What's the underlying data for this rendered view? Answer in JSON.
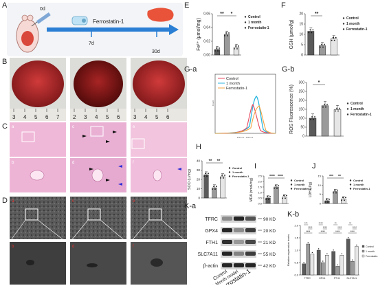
{
  "panels": {
    "A": {
      "label": "A",
      "day0": "0d",
      "day7": "7d",
      "day30": "30d",
      "drug": "Ferrostatin-1",
      "colors": {
        "arrow": "#2a7fd4",
        "liver": "#e8533a",
        "box": "#f2f4f7"
      }
    },
    "B": {
      "label": "B",
      "ruler_ticks": [
        "3",
        "4",
        "5",
        "6",
        "7",
        "2",
        "3",
        "4",
        "5",
        "6",
        "3",
        "4",
        "5",
        "6"
      ]
    },
    "C": {
      "label": "C",
      "sub": [
        "a",
        "b",
        "c",
        "d",
        "e",
        "f"
      ]
    },
    "D": {
      "label": "D",
      "sub": [
        "a",
        "b",
        "c",
        "d",
        "e",
        "f"
      ]
    },
    "E": {
      "label": "E"
    },
    "F": {
      "label": "F"
    },
    "Ga": {
      "label": "G-a",
      "legend": [
        "Control",
        "1 month",
        "Ferrostatin-1"
      ],
      "xlabel": "FITC-H :: FITC-H",
      "ylabel": "Count"
    },
    "Gb": {
      "label": "G-b"
    },
    "H": {
      "label": "H"
    },
    "I": {
      "label": "I"
    },
    "J": {
      "label": "J"
    },
    "Ka": {
      "label": "K-a",
      "proteins": [
        "TFRC",
        "GPX4",
        "FTH1",
        "SLC7A11",
        "β-actin"
      ],
      "kd": [
        "90 KD",
        "20 KD",
        "21 KD",
        "55 KD",
        "42 KD"
      ],
      "lanes": [
        "Control",
        "1 Month model",
        "Ferrostatin-1"
      ]
    },
    "Kb": {
      "label": "K-b"
    }
  },
  "chart_data": [
    {
      "type": "bar",
      "id": "E",
      "ylabel": "Fe²⁺ (μmol/mg)",
      "categories": [
        "Control",
        "1 month",
        "Ferrostatin-1"
      ],
      "values": [
        0.008,
        0.03,
        0.011
      ],
      "ylim": [
        0,
        0.06
      ],
      "yticks": [
        "0.00",
        "0.02",
        "0.04",
        "0.06"
      ],
      "sig": [
        "**",
        "*"
      ],
      "legend": [
        "Control",
        "1 month",
        "Ferrostatin-1"
      ]
    },
    {
      "type": "bar",
      "id": "F",
      "ylabel": "GSH (μmol/g)",
      "categories": [
        "Control",
        "1 month",
        "Ferrostatin-1"
      ],
      "values": [
        11.5,
        4.5,
        7.8
      ],
      "ylim": [
        0,
        20
      ],
      "yticks": [
        "0",
        "5",
        "10",
        "15",
        "20"
      ],
      "sig": [
        "**"
      ],
      "legend": [
        "Control",
        "1 month",
        "Ferrostatin-1"
      ]
    },
    {
      "type": "line",
      "id": "G-a",
      "series": [
        {
          "name": "Control",
          "color": "#e84a5f"
        },
        {
          "name": "1 month",
          "color": "#29b6e0"
        },
        {
          "name": "Ferrostatin-1",
          "color": "#f4a340"
        }
      ]
    },
    {
      "type": "bar",
      "id": "G-b",
      "ylabel": "ROS Fluorescence (%)",
      "categories": [
        "Control",
        "1 month",
        "Ferrostatin-1"
      ],
      "values": [
        100,
        170,
        148
      ],
      "ylim": [
        0,
        300
      ],
      "yticks": [
        "0",
        "50",
        "100",
        "150",
        "200",
        "250",
        "300"
      ],
      "sig": [
        "*"
      ],
      "legend": [
        "Control",
        "1 month",
        "Ferrostatin-1"
      ]
    },
    {
      "type": "bar",
      "id": "H",
      "ylabel": "SOD (U/mg)",
      "categories": [
        "Control",
        "1 month",
        "Ferrostatin-1"
      ],
      "values": [
        25,
        11,
        23
      ],
      "ylim": [
        0,
        40
      ],
      "yticks": [
        "0",
        "10",
        "20",
        "30",
        "40"
      ],
      "sig": [
        "**",
        "**"
      ],
      "legend": [
        "Control",
        "1 month",
        "Ferrostatin-1"
      ]
    },
    {
      "type": "bar",
      "id": "I",
      "ylabel": "MDA (nmol/mg)",
      "categories": [
        "Control",
        "1 month",
        "Ferrostatin-1"
      ],
      "values": [
        0.5,
        1.5,
        0.6
      ],
      "ylim": [
        0,
        2.5
      ],
      "yticks": [
        "0.0",
        "0.5",
        "1.0",
        "1.5",
        "2.0",
        "2.5"
      ],
      "sig": [
        "****",
        "****"
      ],
      "legend": [
        "Control",
        "1 month",
        "Ferrostatin-1"
      ]
    },
    {
      "type": "bar",
      "id": "J",
      "ylabel": "LDH (U/g)",
      "categories": [
        "Control",
        "1 month",
        "Ferrostatin-1"
      ],
      "values": [
        1.5,
        6.5,
        2.5
      ],
      "ylim": [
        0,
        15
      ],
      "yticks": [
        "0",
        "5",
        "10",
        "15"
      ],
      "sig": [
        "***",
        "**"
      ],
      "legend": [
        "Control",
        "1 month",
        "Ferrostatin-1"
      ]
    },
    {
      "type": "bar",
      "id": "K-b",
      "ylabel": "Relative expression levels",
      "categories": [
        "TFRC",
        "GPX4",
        "FTH1",
        "SLC7A11"
      ],
      "series": [
        {
          "name": "Control",
          "values": [
            0.45,
            1.0,
            0.95,
            1.45
          ]
        },
        {
          "name": "1 month",
          "values": [
            1.25,
            0.5,
            0.35,
            0.55
          ]
        },
        {
          "name": "Ferrostatin-1",
          "values": [
            0.85,
            0.8,
            0.8,
            1.15
          ]
        }
      ],
      "ylim": [
        0,
        2.0
      ],
      "yticks": [
        "0.0",
        "0.5",
        "1.0",
        "1.5",
        "2.0"
      ],
      "sig": [
        "***",
        "****",
        "****",
        "****",
        "****",
        "****",
        "**",
        "****",
        "****",
        "**",
        "****",
        "****"
      ],
      "legend": [
        "Control",
        "1 month",
        "Ferrostatin-1"
      ]
    }
  ]
}
